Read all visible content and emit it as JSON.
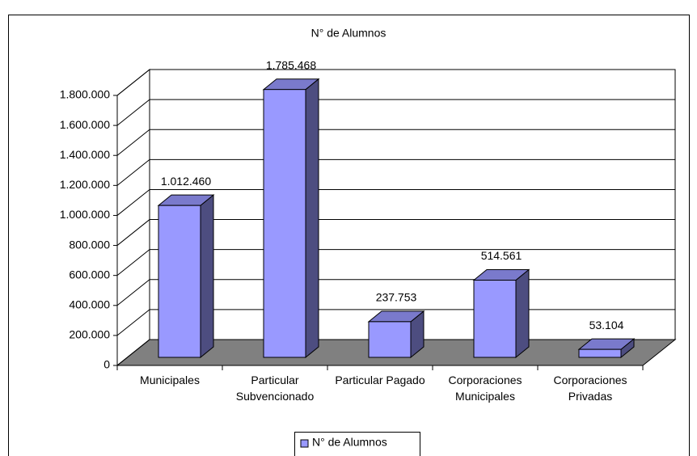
{
  "chart_data": {
    "type": "bar3d",
    "title": "N° de Alumnos",
    "categories": [
      "Municipales",
      "Particular Subvencionado",
      "Particular Pagado",
      "Corporaciones Municipales",
      "Corporaciones Privadas"
    ],
    "series": [
      {
        "name": "N° de Alumnos",
        "color": "#9999ff",
        "values": [
          1012460,
          1785468,
          237753,
          514561,
          53104
        ],
        "value_labels": [
          "1.012.460",
          "1.785.468",
          "237.753",
          "514.561",
          "53.104"
        ]
      }
    ],
    "ylim": [
      0,
      1800000
    ],
    "yticks": [
      0,
      {
        "value": 200000,
        "label": "200.000"
      },
      {
        "value": 400000,
        "label": "400.000"
      },
      {
        "value": 600000,
        "label": "600.000"
      },
      {
        "value": 800000,
        "label": "800.000"
      },
      {
        "value": 1000000,
        "label": "1.000.000"
      },
      {
        "value": 1200000,
        "label": "1.200.000"
      },
      {
        "value": 1400000,
        "label": "1.400.000"
      },
      {
        "value": 1600000,
        "label": "1.600.000"
      },
      {
        "value": 1800000,
        "label": "1.800.000"
      }
    ],
    "grid": true,
    "legend": "bottom"
  }
}
